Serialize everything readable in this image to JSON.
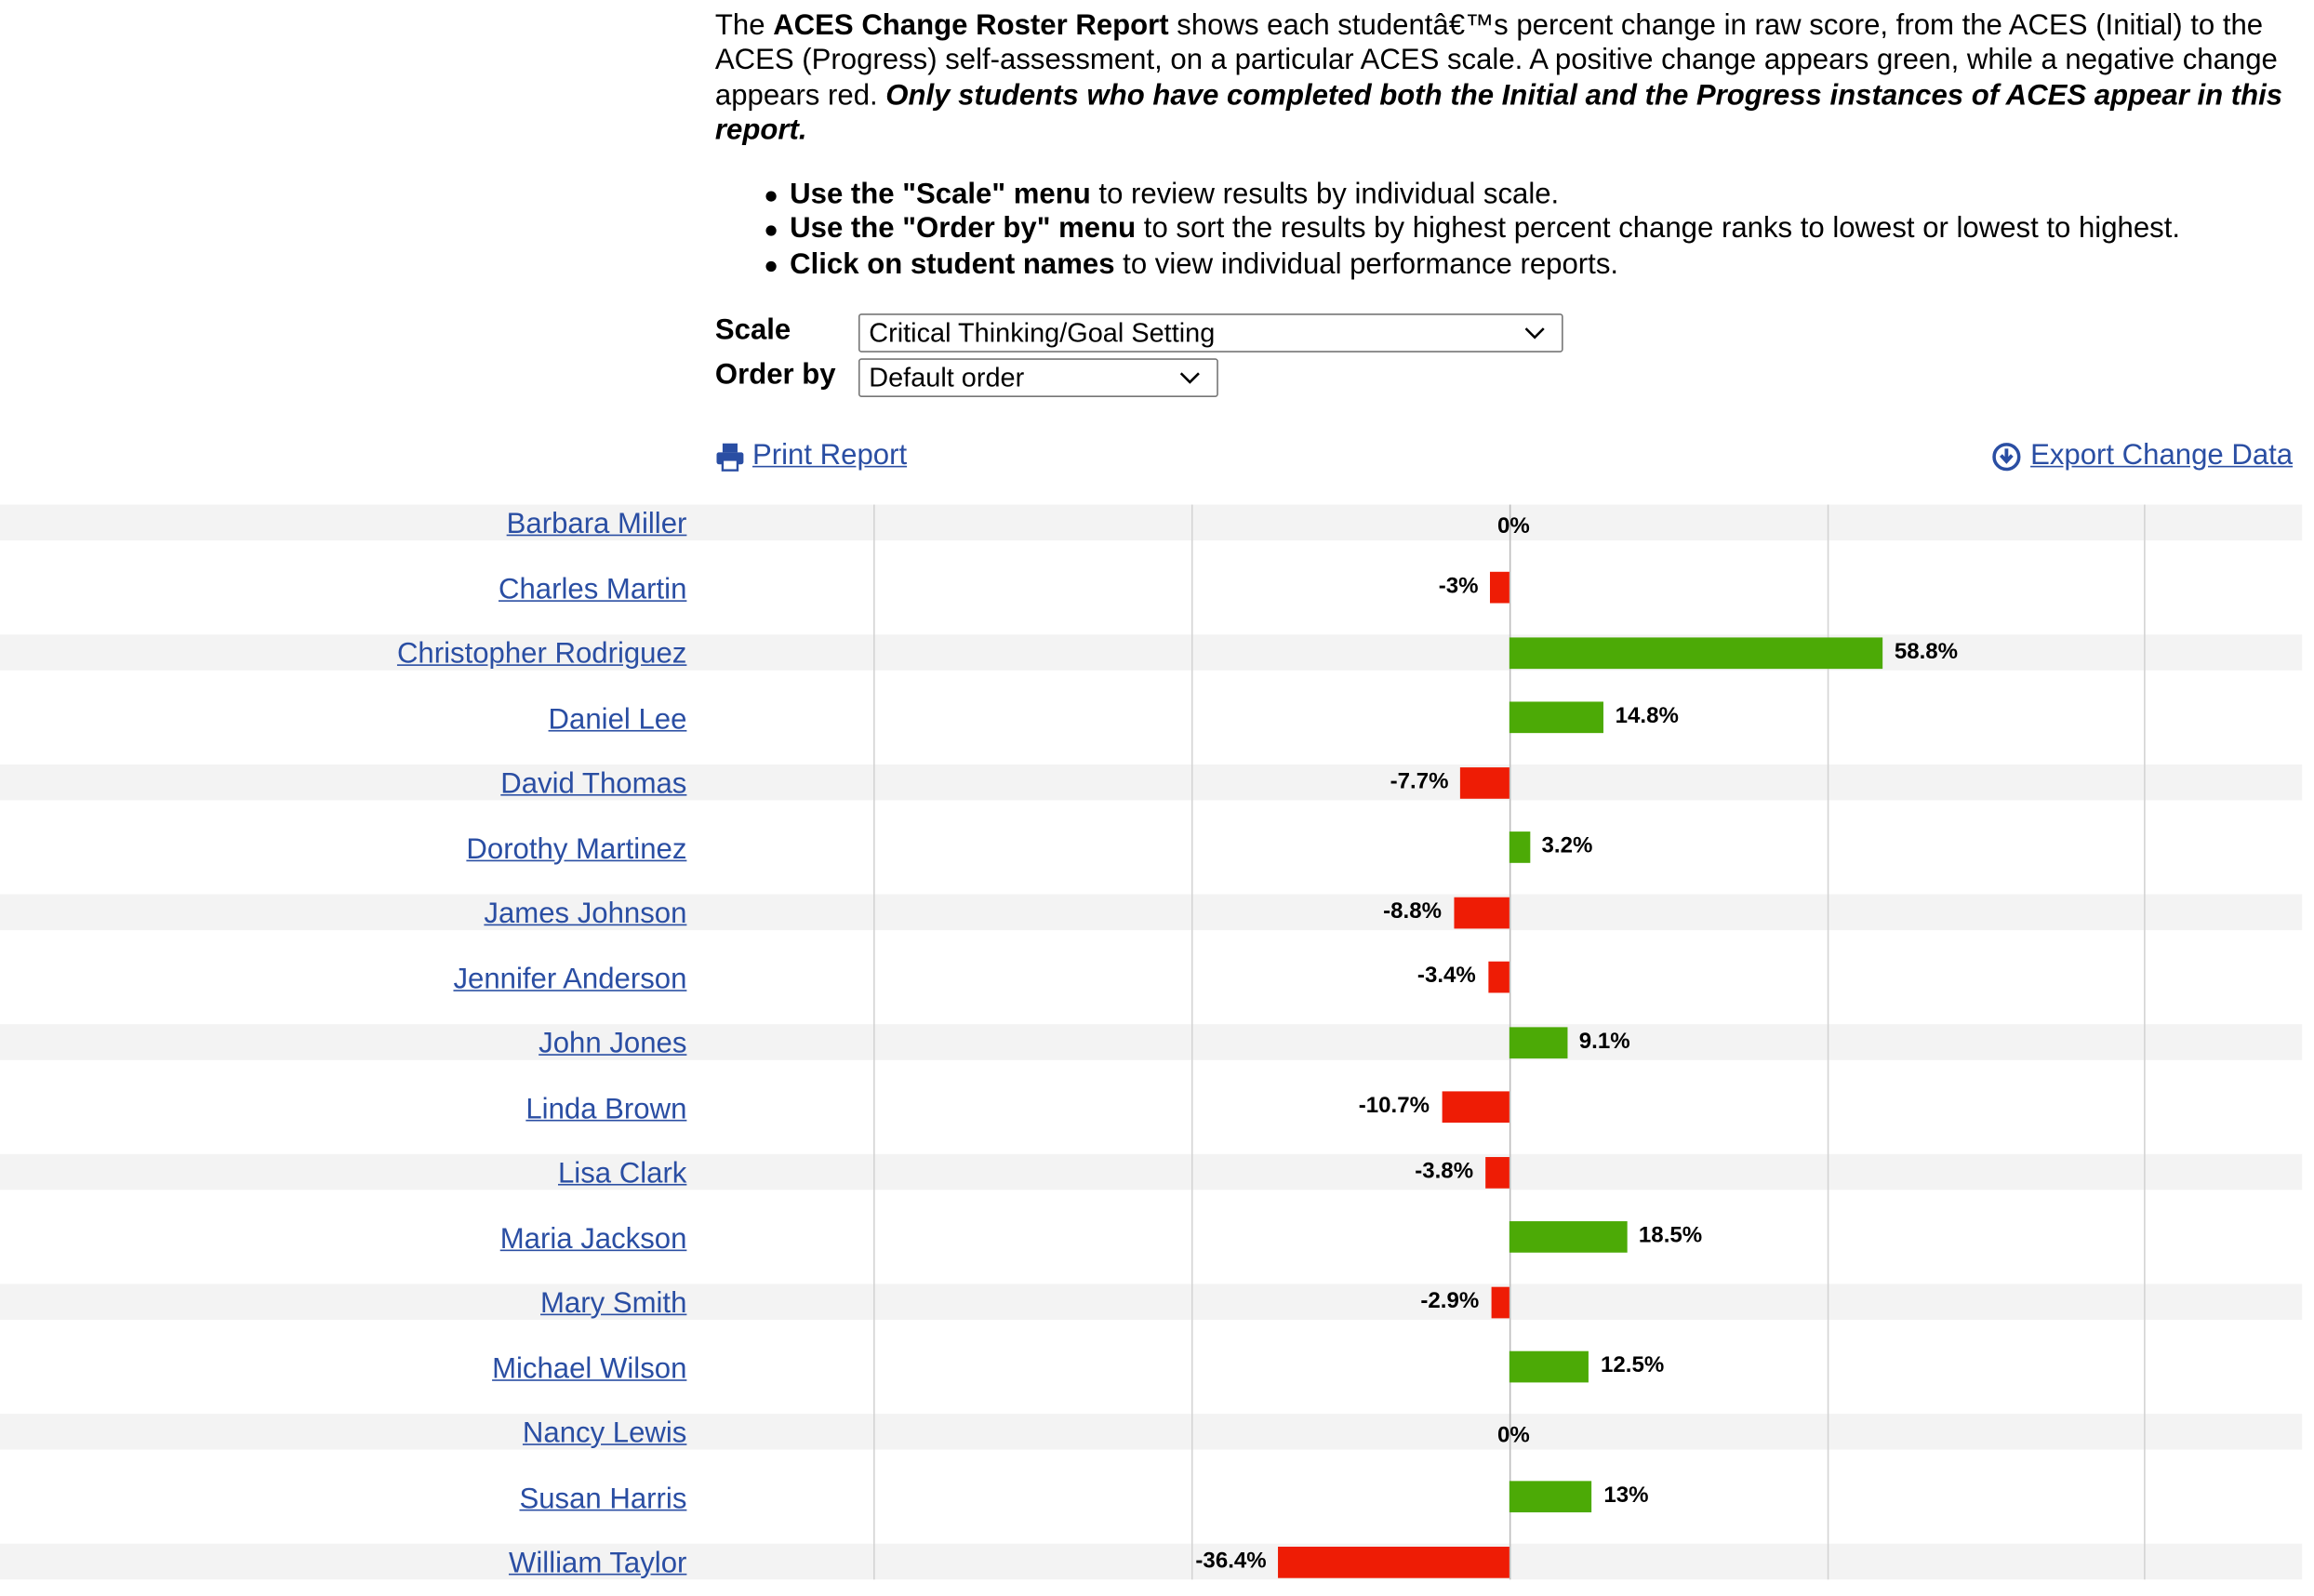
{
  "intro": {
    "p1": "The ",
    "p2": "ACES Change Roster Report",
    "p3": " shows each studentâ€™s percent change in raw score, from the ACES (Initial) to the ACES (Progress) self-assessment, on a particular ACES scale. A positive change appears green, while a negative change appears red. ",
    "p4": "Only students who have completed both the Initial and the Progress instances of ACES appear in this report."
  },
  "bullets": [
    {
      "bold": "Use the \"Scale\" menu",
      "rest": " to review results by individual scale."
    },
    {
      "bold": "Use the \"Order by\" menu",
      "rest": " to sort the results by highest percent change ranks to lowest or lowest to highest."
    },
    {
      "bold": "Click on student names",
      "rest": " to view individual performance reports."
    }
  ],
  "controls": {
    "scale_label": "Scale",
    "scale_value": "Critical Thinking/Goal Setting",
    "order_label": "Order by",
    "order_value": "Default order"
  },
  "toolbar": {
    "print_label": "Print Report",
    "export_label": "Export Change Data"
  },
  "colors": {
    "positive": "#4caa06",
    "negative": "#ee1c05",
    "link": "#2a4ea3",
    "stripe": "#f3f3f3"
  },
  "icons": {
    "print": "printer-icon",
    "export": "download-circle-icon",
    "dropdown": "chevron-down-icon"
  },
  "chart_data": {
    "type": "bar",
    "orientation": "horizontal",
    "unit": "%",
    "xlim": [
      -100,
      100
    ],
    "grid": true,
    "categories": [
      "Barbara Miller",
      "Charles Martin",
      "Christopher Rodriguez",
      "Daniel Lee",
      "David Thomas",
      "Dorothy Martinez",
      "James Johnson",
      "Jennifer Anderson",
      "John Jones",
      "Linda Brown",
      "Lisa Clark",
      "Maria Jackson",
      "Mary Smith",
      "Michael Wilson",
      "Nancy Lewis",
      "Susan Harris",
      "William Taylor"
    ],
    "values": [
      0,
      -3,
      58.8,
      14.8,
      -7.7,
      3.2,
      -8.8,
      -3.4,
      9.1,
      -10.7,
      -3.8,
      18.5,
      -2.9,
      12.5,
      0,
      13,
      -36.4
    ],
    "labels": [
      "0%",
      "-3%",
      "58.8%",
      "14.8%",
      "-7.7%",
      "3.2%",
      "-8.8%",
      "-3.4%",
      "9.1%",
      "-10.7%",
      "-3.8%",
      "18.5%",
      "-2.9%",
      "12.5%",
      "0%",
      "13%",
      "-36.4%"
    ]
  }
}
